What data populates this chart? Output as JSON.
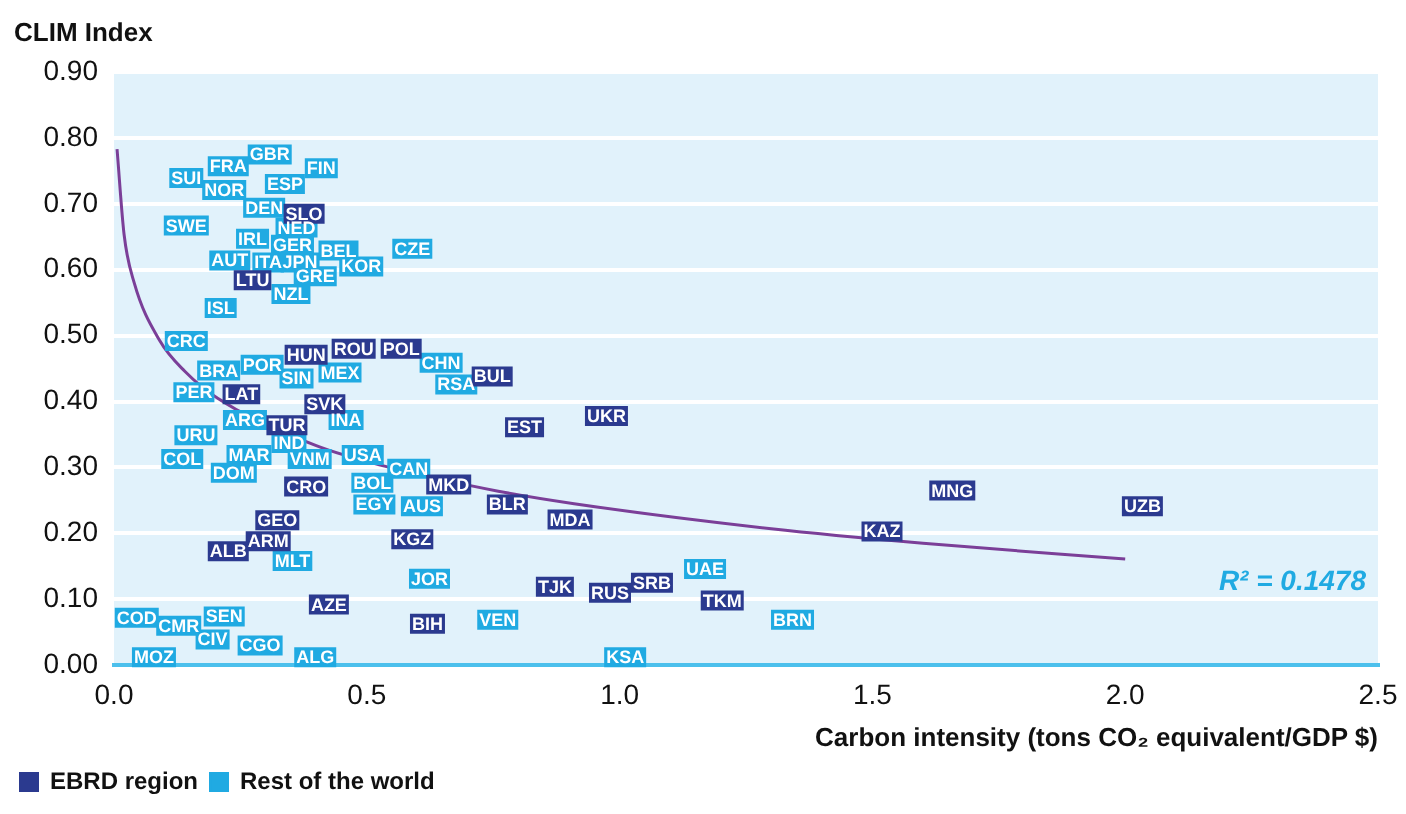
{
  "chart_data": {
    "type": "scatter",
    "ylabel": "CLIM Index",
    "xlabel": "Carbon intensity (tons CO₂ equivalent/GDP $)",
    "xlim": [
      0,
      2.5
    ],
    "xticks": [
      {
        "value": 0,
        "label": "0.0"
      },
      {
        "value": 0.5,
        "label": "0.5"
      },
      {
        "value": 1,
        "label": "1.0"
      },
      {
        "value": 1.5,
        "label": "1.5"
      },
      {
        "value": 2,
        "label": "2.0"
      },
      {
        "value": 2.5,
        "label": "2.5"
      }
    ],
    "ylim": [
      0,
      0.9
    ],
    "yticks": [
      {
        "value": 0,
        "label": "0.00"
      },
      {
        "value": 0.1,
        "label": "0.10"
      },
      {
        "value": 0.2,
        "label": "0.20"
      },
      {
        "value": 0.3,
        "label": "0.30"
      },
      {
        "value": 0.4,
        "label": "0.40"
      },
      {
        "value": 0.5,
        "label": "0.50"
      },
      {
        "value": 0.6,
        "label": "0.60"
      },
      {
        "value": 0.7,
        "label": "0.70"
      },
      {
        "value": 0.8,
        "label": "0.80"
      },
      {
        "value": 0.9,
        "label": "0.90"
      }
    ],
    "grid": "y",
    "legend": "bottom left",
    "annotations": [
      "R² = 0.1478"
    ],
    "series": [
      {
        "name": "EBRD region",
        "type": "scatter",
        "color": "#2b3a8f",
        "x": [
          0.376,
          0.274,
          0.38,
          0.474,
          0.568,
          0.748,
          0.252,
          0.417,
          0.342,
          0.662,
          0.38,
          0.323,
          0.59,
          0.305,
          0.226,
          0.425,
          0.62,
          0.812,
          0.974,
          0.778,
          0.902,
          0.872,
          0.981,
          1.064,
          1.203,
          1.658,
          2.034,
          1.519
        ],
        "values": [
          0.685,
          0.584,
          0.471,
          0.48,
          0.48,
          0.438,
          0.411,
          0.396,
          0.364,
          0.274,
          0.271,
          0.22,
          0.191,
          0.188,
          0.173,
          0.092,
          0.063,
          0.361,
          0.378,
          0.244,
          0.221,
          0.119,
          0.11,
          0.125,
          0.098,
          0.265,
          0.241,
          0.203
        ],
        "value_labels": [
          "SLO",
          "LTU",
          "HUN",
          "ROU",
          "POL",
          "BUL",
          "LAT",
          "SVK",
          "TUR",
          "MKD",
          "CRO",
          "GEO",
          "KGZ",
          "ARM",
          "ALB",
          "AZE",
          "BIH",
          "EST",
          "UKR",
          "BLR",
          "MDA",
          "TJK",
          "RUS",
          "SRB",
          "TKM",
          "MNG",
          "UZB",
          "KAZ"
        ]
      },
      {
        "name": "Rest of the world",
        "type": "scatter",
        "color": "#20aae2",
        "x": [
          0.143,
          0.226,
          0.308,
          0.41,
          0.218,
          0.338,
          0.297,
          0.143,
          0.361,
          0.274,
          0.353,
          0.444,
          0.59,
          0.229,
          0.305,
          0.368,
          0.489,
          0.398,
          0.35,
          0.211,
          0.143,
          0.647,
          0.677,
          0.207,
          0.293,
          0.361,
          0.447,
          0.158,
          0.459,
          0.259,
          0.162,
          0.346,
          0.135,
          0.267,
          0.387,
          0.237,
          0.492,
          0.583,
          0.511,
          0.515,
          0.609,
          0.353,
          0.624,
          0.045,
          0.218,
          0.128,
          0.195,
          0.289,
          0.079,
          0.398,
          0.759,
          1.169,
          1.011,
          1.342
        ],
        "values": [
          0.739,
          0.757,
          0.775,
          0.754,
          0.721,
          0.73,
          0.694,
          0.667,
          0.664,
          0.647,
          0.638,
          0.629,
          0.632,
          0.614,
          0.611,
          0.611,
          0.605,
          0.59,
          0.563,
          0.542,
          0.492,
          0.459,
          0.426,
          0.447,
          0.456,
          0.435,
          0.444,
          0.414,
          0.372,
          0.372,
          0.349,
          0.337,
          0.313,
          0.319,
          0.313,
          0.292,
          0.319,
          0.298,
          0.277,
          0.244,
          0.241,
          0.158,
          0.131,
          0.072,
          0.074,
          0.06,
          0.039,
          0.03,
          0.012,
          0.012,
          0.069,
          0.146,
          0.012,
          0.069
        ],
        "value_labels": [
          "SUI",
          "FRA",
          "GBR",
          "FIN",
          "NOR",
          "ESP",
          "DEN",
          "SWE",
          "NED",
          "IRL",
          "GER",
          "BEL",
          "CZE",
          "AUT",
          "ITA",
          "JPN",
          "KOR",
          "GRE",
          "NZL",
          "ISL",
          "CRC",
          "CHN",
          "RSA",
          "BRA",
          "POR",
          "SIN",
          "MEX",
          "PER",
          "INA",
          "ARG",
          "URU",
          "IND",
          "COL",
          "MAR",
          "VNM",
          "DOM",
          "USA",
          "CAN",
          "BOL",
          "EGY",
          "AUS",
          "MLT",
          "JOR",
          "COD",
          "SEN",
          "CMR",
          "CIV",
          "CGO",
          "MOZ",
          "ALG",
          "VEN",
          "UAE",
          "KSA",
          "BRN"
        ]
      },
      {
        "type": "line",
        "marker": "none",
        "color": "#7b3f98",
        "x": [
          0.006,
          0.02,
          0.04,
          0.09,
          0.14,
          0.205,
          0.4,
          0.535,
          0.76,
          0.91,
          1.3,
          1.6,
          2.0
        ],
        "values": [
          0.783,
          0.653,
          0.58,
          0.493,
          0.446,
          0.405,
          0.333,
          0.302,
          0.264,
          0.245,
          0.207,
          0.185,
          0.161
        ]
      }
    ]
  }
}
